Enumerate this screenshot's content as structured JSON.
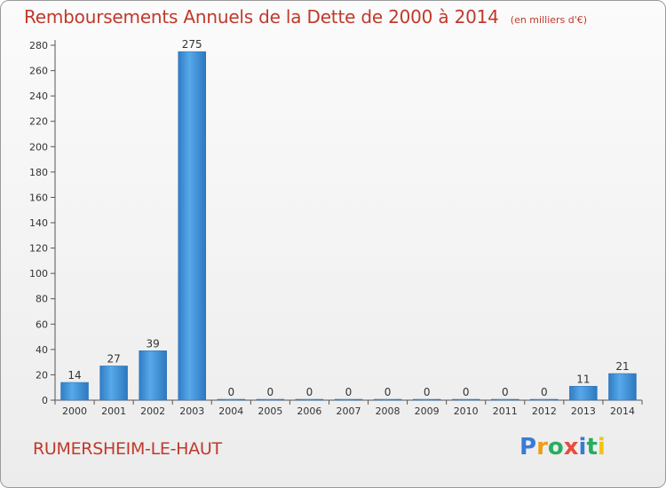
{
  "chart_data": {
    "type": "bar",
    "title": "Remboursements Annuels de la Dette de 2000 à 2014",
    "subtitle": "(en milliers d'€)",
    "categories": [
      "2000",
      "2001",
      "2002",
      "2003",
      "2004",
      "2005",
      "2006",
      "2007",
      "2008",
      "2009",
      "2010",
      "2011",
      "2012",
      "2013",
      "2014"
    ],
    "values": [
      14,
      27,
      39,
      275,
      0,
      0,
      0,
      0,
      0,
      0,
      0,
      0,
      0,
      11,
      21
    ],
    "value_labels": [
      "14",
      "27",
      "39",
      "275",
      "0",
      "0",
      "0",
      "0",
      "0",
      "0",
      "0",
      "0",
      "0",
      "11",
      "21"
    ],
    "ylim": [
      0,
      280
    ],
    "yticks": [
      0,
      20,
      40,
      60,
      80,
      100,
      120,
      140,
      160,
      180,
      200,
      220,
      240,
      260,
      280
    ],
    "ytick_labels": [
      "0",
      "20",
      "40",
      "60",
      "80",
      "100",
      "120",
      "140",
      "160",
      "180",
      "200",
      "220",
      "240",
      "260",
      "280"
    ],
    "xlabel": "",
    "ylabel": "",
    "grid": false,
    "bar_color": "#3a8fd6"
  },
  "footer": {
    "commune": "RUMERSHEIM-LE-HAUT",
    "brand_letters": [
      "P",
      "r",
      "o",
      "x",
      "i",
      "t",
      "i"
    ],
    "brand_colors": [
      "#3a7bd5",
      "#f39c12",
      "#27ae60",
      "#e74c3c",
      "#3a7bd5",
      "#27ae60",
      "#f1c40f"
    ]
  }
}
